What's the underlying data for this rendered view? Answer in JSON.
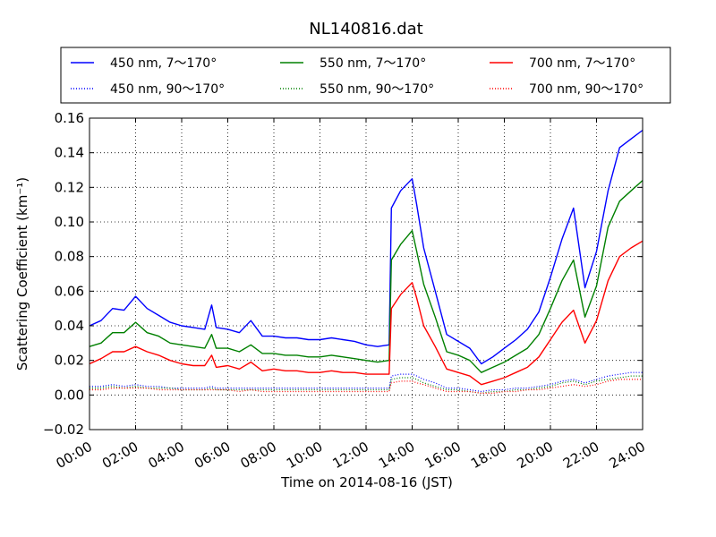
{
  "chart_data": {
    "type": "line",
    "title": "NL140816.dat",
    "xlabel": "Time on 2014-08-16 (JST)",
    "ylabel": "Scattering Coefficient (km⁻¹)",
    "x_ticks": [
      "00:00",
      "02:00",
      "04:00",
      "06:00",
      "08:00",
      "10:00",
      "12:00",
      "14:00",
      "16:00",
      "18:00",
      "20:00",
      "22:00",
      "24:00"
    ],
    "y_ticks": [
      "−0.02",
      "0.00",
      "0.02",
      "0.04",
      "0.06",
      "0.08",
      "0.10",
      "0.12",
      "0.14",
      "0.16"
    ],
    "xlim_hours": [
      0,
      24
    ],
    "ylim": [
      -0.02,
      0.16
    ],
    "grid": true,
    "legend_position": "top",
    "x_hours": [
      0,
      0.5,
      1,
      1.5,
      2,
      2.5,
      3,
      3.5,
      4,
      4.5,
      5,
      5.3,
      5.5,
      6,
      6.5,
      7,
      7.5,
      8,
      8.5,
      9,
      9.5,
      10,
      10.5,
      11,
      11.5,
      12,
      12.5,
      13,
      13.1,
      13.5,
      14,
      14.2,
      14.5,
      15,
      15.5,
      16,
      16.5,
      17,
      17.5,
      18,
      18.5,
      19,
      19.5,
      20,
      20.5,
      21,
      21.5,
      22,
      22.5,
      23,
      23.5,
      24
    ],
    "series": [
      {
        "name": "450 nm, 7～170°",
        "color": "#0000ff",
        "style": "solid",
        "values": [
          0.04,
          0.043,
          0.05,
          0.049,
          0.057,
          0.05,
          0.046,
          0.042,
          0.04,
          0.039,
          0.038,
          0.052,
          0.039,
          0.038,
          0.036,
          0.043,
          0.034,
          0.034,
          0.033,
          0.033,
          0.032,
          0.032,
          0.033,
          0.032,
          0.031,
          0.029,
          0.028,
          0.029,
          0.108,
          0.118,
          0.125,
          0.11,
          0.085,
          0.06,
          0.035,
          0.031,
          0.027,
          0.018,
          0.022,
          0.027,
          0.032,
          0.038,
          0.048,
          0.068,
          0.09,
          0.108,
          0.062,
          0.083,
          0.118,
          0.143,
          0.148,
          0.153
        ]
      },
      {
        "name": "550 nm, 7～170°",
        "color": "#008000",
        "style": "solid",
        "values": [
          0.028,
          0.03,
          0.036,
          0.036,
          0.042,
          0.036,
          0.034,
          0.03,
          0.029,
          0.028,
          0.027,
          0.035,
          0.027,
          0.027,
          0.025,
          0.029,
          0.024,
          0.024,
          0.023,
          0.023,
          0.022,
          0.022,
          0.023,
          0.022,
          0.021,
          0.02,
          0.019,
          0.02,
          0.078,
          0.087,
          0.095,
          0.083,
          0.064,
          0.045,
          0.025,
          0.023,
          0.02,
          0.013,
          0.016,
          0.019,
          0.023,
          0.027,
          0.035,
          0.05,
          0.066,
          0.078,
          0.045,
          0.063,
          0.097,
          0.112,
          0.118,
          0.124
        ]
      },
      {
        "name": "700 nm, 7～170°",
        "color": "#ff0000",
        "style": "solid",
        "values": [
          0.018,
          0.021,
          0.025,
          0.025,
          0.028,
          0.025,
          0.023,
          0.02,
          0.018,
          0.017,
          0.017,
          0.023,
          0.016,
          0.017,
          0.015,
          0.019,
          0.014,
          0.015,
          0.014,
          0.014,
          0.013,
          0.013,
          0.014,
          0.013,
          0.013,
          0.012,
          0.012,
          0.012,
          0.05,
          0.058,
          0.065,
          0.056,
          0.04,
          0.028,
          0.015,
          0.013,
          0.011,
          0.006,
          0.008,
          0.01,
          0.013,
          0.016,
          0.022,
          0.032,
          0.042,
          0.049,
          0.03,
          0.043,
          0.066,
          0.08,
          0.085,
          0.089
        ]
      },
      {
        "name": "450 nm, 90～170°",
        "color": "#0000ff",
        "style": "dotted",
        "values": [
          0.005,
          0.005,
          0.006,
          0.005,
          0.006,
          0.005,
          0.005,
          0.004,
          0.004,
          0.004,
          0.004,
          0.005,
          0.004,
          0.004,
          0.004,
          0.004,
          0.004,
          0.004,
          0.004,
          0.004,
          0.004,
          0.004,
          0.004,
          0.004,
          0.004,
          0.004,
          0.004,
          0.004,
          0.011,
          0.012,
          0.012,
          0.011,
          0.009,
          0.007,
          0.004,
          0.004,
          0.003,
          0.002,
          0.003,
          0.003,
          0.004,
          0.004,
          0.005,
          0.006,
          0.008,
          0.009,
          0.007,
          0.009,
          0.011,
          0.012,
          0.013,
          0.013
        ]
      },
      {
        "name": "550 nm, 90～170°",
        "color": "#008000",
        "style": "dotted",
        "values": [
          0.004,
          0.004,
          0.005,
          0.004,
          0.005,
          0.004,
          0.004,
          0.004,
          0.003,
          0.003,
          0.003,
          0.004,
          0.003,
          0.003,
          0.003,
          0.003,
          0.003,
          0.003,
          0.003,
          0.003,
          0.003,
          0.003,
          0.003,
          0.003,
          0.003,
          0.003,
          0.003,
          0.003,
          0.009,
          0.01,
          0.01,
          0.009,
          0.007,
          0.005,
          0.003,
          0.003,
          0.002,
          0.001,
          0.002,
          0.002,
          0.003,
          0.003,
          0.004,
          0.005,
          0.007,
          0.008,
          0.006,
          0.008,
          0.009,
          0.01,
          0.011,
          0.011
        ]
      },
      {
        "name": "700 nm, 90～170°",
        "color": "#ff0000",
        "style": "dotted",
        "values": [
          0.003,
          0.003,
          0.004,
          0.004,
          0.004,
          0.004,
          0.003,
          0.003,
          0.003,
          0.003,
          0.003,
          0.003,
          0.003,
          0.003,
          0.002,
          0.003,
          0.002,
          0.002,
          0.002,
          0.002,
          0.002,
          0.002,
          0.002,
          0.002,
          0.002,
          0.002,
          0.002,
          0.002,
          0.007,
          0.008,
          0.008,
          0.007,
          0.006,
          0.004,
          0.002,
          0.002,
          0.002,
          0.001,
          0.001,
          0.002,
          0.002,
          0.003,
          0.003,
          0.004,
          0.005,
          0.006,
          0.005,
          0.006,
          0.008,
          0.009,
          0.009,
          0.009
        ]
      }
    ]
  }
}
